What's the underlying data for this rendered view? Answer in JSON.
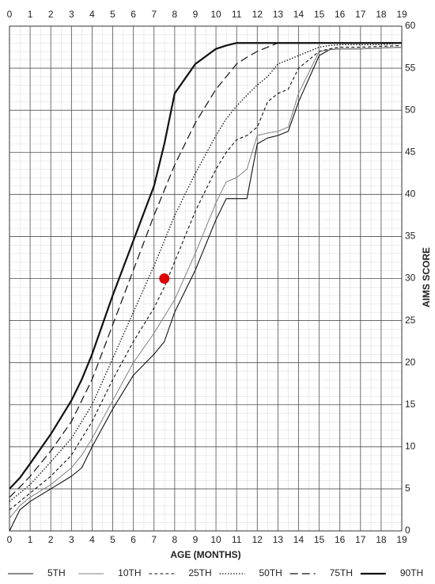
{
  "chart_data": {
    "type": "line",
    "xlabel": "AGE (MONTHS)",
    "ylabel": "AIMS SCORE",
    "xlim": [
      0,
      19
    ],
    "ylim": [
      0,
      60
    ],
    "xticks": [
      0,
      1,
      2,
      3,
      4,
      5,
      6,
      7,
      8,
      9,
      10,
      11,
      12,
      13,
      14,
      15,
      16,
      17,
      18,
      19
    ],
    "yticks": [
      0,
      5,
      10,
      15,
      20,
      25,
      30,
      35,
      40,
      45,
      50,
      55,
      60
    ],
    "grid": true,
    "legend": "bottom",
    "x": [
      0,
      0.5,
      1,
      2,
      3,
      3.5,
      4,
      5,
      6,
      7,
      7.5,
      8,
      9,
      10,
      10.5,
      11,
      11.5,
      12,
      12.5,
      13,
      13.5,
      14,
      15,
      15.5,
      16,
      17,
      18,
      19
    ],
    "series": [
      {
        "name": "5TH",
        "color": "#111111",
        "width": 1.1,
        "dash": "none",
        "values": [
          0,
          2.5,
          3.5,
          5,
          6.5,
          7.5,
          10,
          14.5,
          18.5,
          21,
          22.5,
          26,
          31,
          37,
          39.5,
          39.5,
          39.5,
          46,
          46.7,
          47,
          47.5,
          51,
          56.5,
          57.2,
          57.3,
          57.3,
          57.4,
          57.5
        ]
      },
      {
        "name": "10TH",
        "color": "#808080",
        "width": 1,
        "dash": "none",
        "values": [
          1.5,
          3,
          4,
          5.5,
          7.5,
          9,
          11,
          15.5,
          20,
          23.5,
          25.5,
          27.5,
          33,
          39,
          41.5,
          42,
          43,
          47,
          47.3,
          47.5,
          48,
          52,
          57,
          57.2,
          57.3,
          57.3,
          57.4,
          57.5
        ]
      },
      {
        "name": "25TH",
        "color": "#111111",
        "width": 1.1,
        "dash": "4,3",
        "values": [
          2.5,
          3.5,
          4.5,
          6.5,
          9,
          11,
          13,
          18,
          22.5,
          26.5,
          29,
          32,
          38,
          43,
          45,
          46.5,
          47,
          48,
          51,
          52,
          52.5,
          55,
          57,
          57.3,
          57.5,
          57.5,
          57.6,
          57.7
        ]
      },
      {
        "name": "50TH",
        "color": "#111111",
        "width": 1.3,
        "dash": "1.5,2",
        "values": [
          3.5,
          4.5,
          5.5,
          8.2,
          11,
          13,
          15,
          20.5,
          26,
          31.5,
          34.5,
          37.5,
          42.5,
          47,
          49,
          50.5,
          51.8,
          53,
          54,
          55.5,
          56,
          56.5,
          57.5,
          57.7,
          57.8,
          57.8,
          57.8,
          58
        ]
      },
      {
        "name": "75TH",
        "color": "#111111",
        "width": 1.2,
        "dash": "10,5",
        "values": [
          4,
          5.2,
          6.5,
          9.5,
          13,
          15.5,
          18,
          24.5,
          31,
          37.5,
          40.5,
          43.5,
          48.5,
          52.5,
          54,
          55.5,
          56.3,
          57,
          57.5,
          58,
          58,
          58,
          58,
          58,
          58,
          58,
          58,
          58
        ]
      },
      {
        "name": "90TH",
        "color": "#111111",
        "width": 2.2,
        "dash": "none",
        "values": [
          5,
          6.3,
          8,
          11.5,
          15.5,
          18,
          21,
          28,
          34.5,
          41,
          46,
          52,
          55.5,
          57.3,
          57.7,
          58,
          58,
          58,
          58,
          58,
          58,
          58,
          58,
          58,
          58,
          58,
          58,
          58
        ]
      }
    ],
    "points": [
      {
        "x": 7.5,
        "y": 30,
        "color": "#dd0000"
      }
    ]
  }
}
